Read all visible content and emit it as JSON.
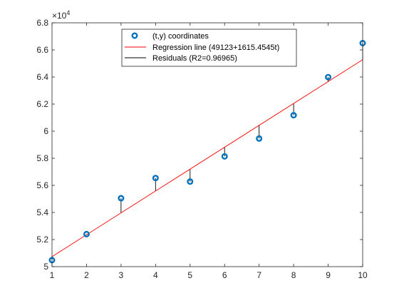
{
  "chart_data": {
    "type": "scatter",
    "title": "",
    "xlabel": "",
    "ylabel": "",
    "xlim": [
      1,
      10
    ],
    "ylim": [
      50000,
      68000
    ],
    "x_ticks": [
      1,
      2,
      3,
      4,
      5,
      6,
      7,
      8,
      9,
      10
    ],
    "x_tick_labels": [
      "1",
      "2",
      "3",
      "4",
      "5",
      "6",
      "7",
      "8",
      "9",
      "10"
    ],
    "y_ticks": [
      50000,
      52000,
      54000,
      56000,
      58000,
      60000,
      62000,
      64000,
      66000,
      68000
    ],
    "y_tick_labels": [
      "5",
      "5.2",
      "5.4",
      "5.6",
      "5.8",
      "6",
      "6.2",
      "6.4",
      "6.6",
      "6.8"
    ],
    "y_exponent_label": "×10",
    "y_exponent_power": "4",
    "grid": false,
    "legend_position": "top-center",
    "series": [
      {
        "name": "(t,y) coordinates",
        "kind": "scatter",
        "marker": "circle",
        "color": "#0072BD",
        "x": [
          1,
          2,
          3,
          4,
          5,
          6,
          7,
          8,
          9,
          10
        ],
        "y": [
          50480,
          52400,
          55050,
          56540,
          56280,
          58140,
          59460,
          61180,
          63990,
          66500
        ]
      },
      {
        "name": "Regression line (49123+1615.4545t)",
        "kind": "line",
        "color": "#FF0000",
        "intercept": 49123,
        "slope": 1615.4545,
        "x": [
          1,
          10
        ],
        "y": [
          50738.45,
          65277.55
        ]
      },
      {
        "name": "Residuals (R2=0.96965)",
        "kind": "residuals",
        "color": "#000000"
      }
    ]
  }
}
